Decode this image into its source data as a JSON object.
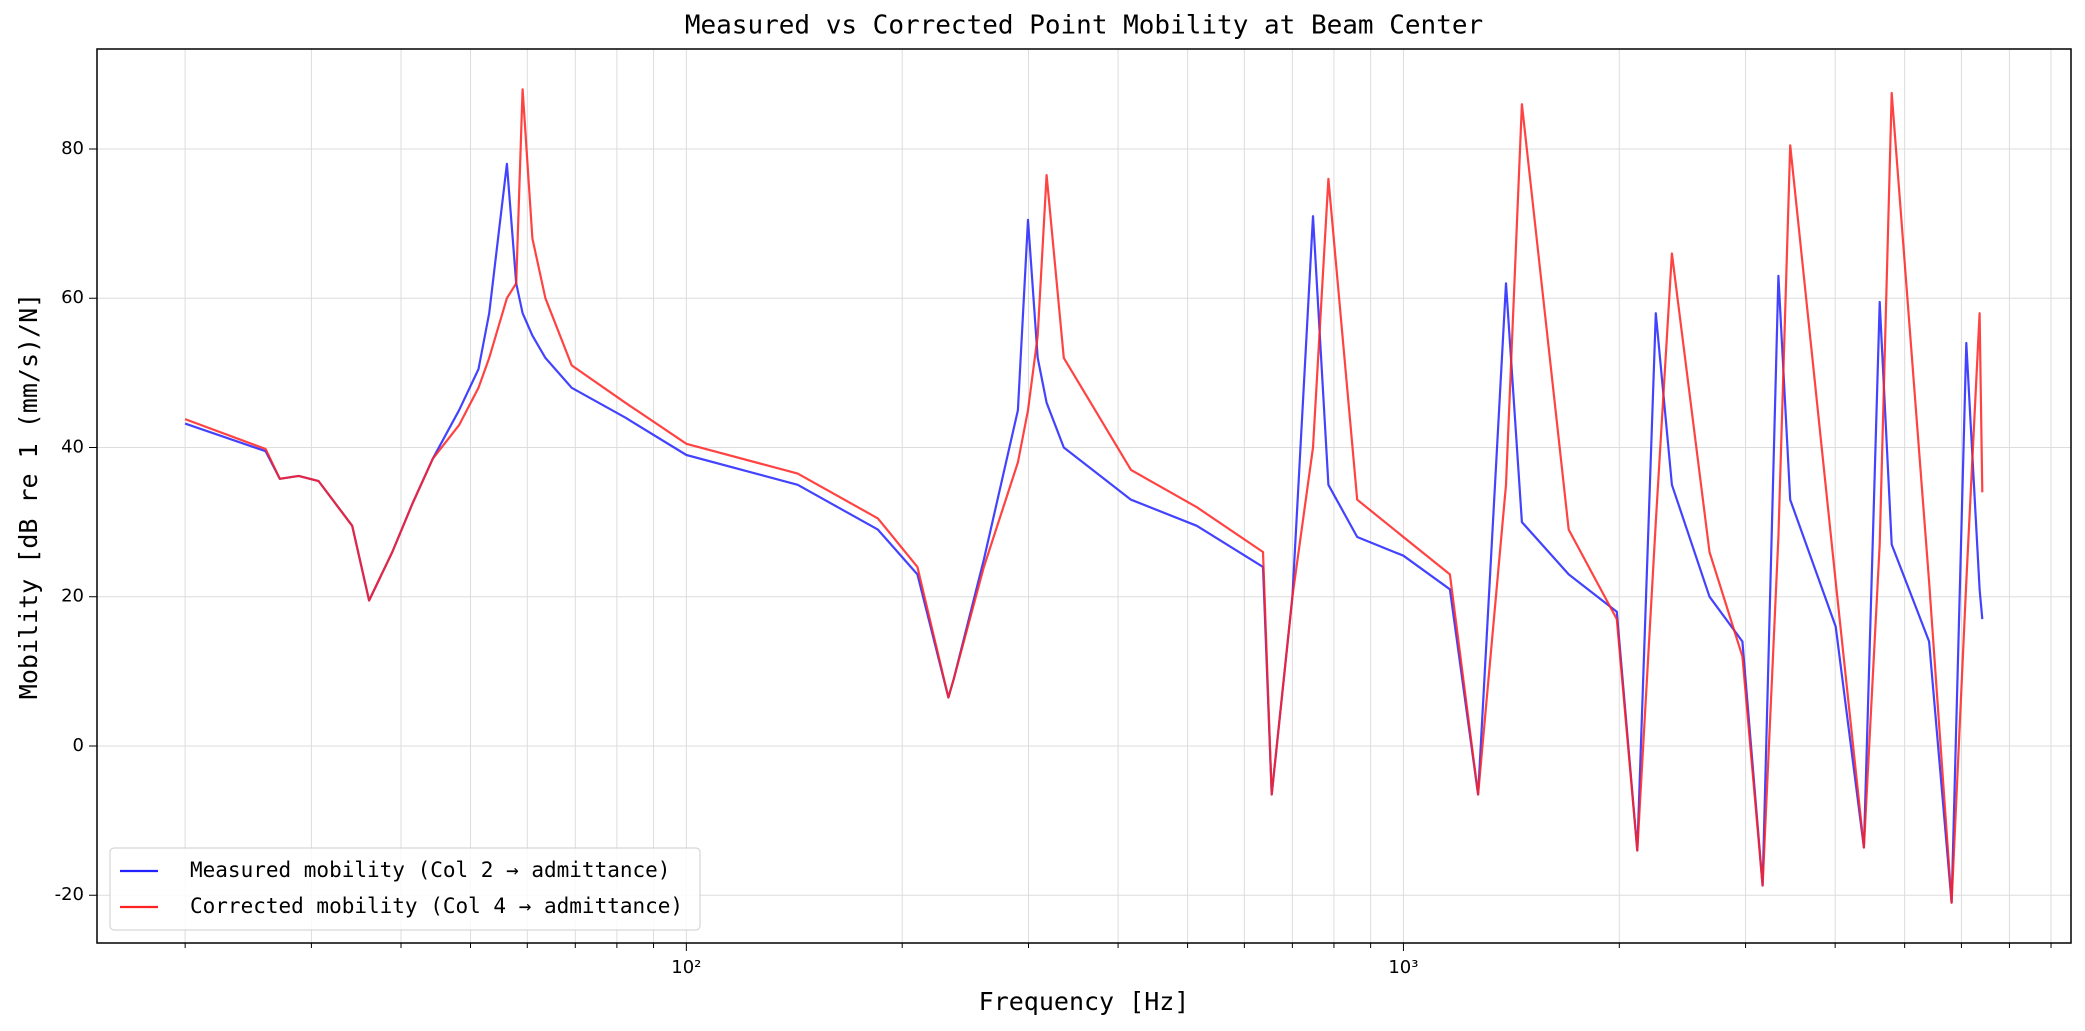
{
  "chart_data": {
    "type": "line",
    "title": "Measured vs Corrected Point Mobility at Beam Center",
    "xlabel": "Frequency [Hz]",
    "ylabel": "Mobility [dB re 1 (mm/s)/N]",
    "xscale": "log",
    "x": [
      20,
      25.9,
      27.1,
      28.8,
      30.7,
      34.2,
      36.1,
      38.9,
      41.5,
      44.3,
      48.2,
      51.3,
      53.1,
      56.2,
      57.9,
      59.1,
      61,
      63.6,
      69.2,
      82.2,
      100,
      143,
      185,
      210,
      232,
      236,
      260,
      290,
      299.5,
      309,
      318,
      336,
      417,
      515,
      637,
      655,
      700,
      748,
      786,
      862,
      1000,
      1161,
      1271,
      1390,
      1463,
      1700,
      1984,
      2119,
      2249,
      2368,
      2672,
      2970,
      3169,
      3334,
      3462,
      4007,
      4387,
      4615,
      4797,
      5408,
      5813,
      6095,
      6360,
      6416
    ],
    "series": [
      {
        "name": "Measured mobility (Col 2 → admittance)",
        "color": "#2222ff",
        "values": [
          43.2,
          39.5,
          35.8,
          36.2,
          35.5,
          29.5,
          19.5,
          26,
          32.5,
          38.5,
          45,
          50.5,
          58,
          78,
          62,
          58,
          55,
          52,
          48,
          44,
          39,
          35,
          29,
          23,
          6.5,
          9,
          25,
          45,
          70.5,
          52,
          46,
          40,
          33,
          29.5,
          24,
          -6.5,
          20,
          71,
          35,
          28,
          25.5,
          21,
          -6.5,
          62,
          30,
          23,
          18,
          -14,
          58,
          35,
          20,
          14,
          -18.7,
          63,
          33,
          16,
          -13.6,
          59.5,
          27,
          14,
          -21,
          54,
          21,
          17
        ]
      },
      {
        "name": "Corrected mobility (Col 4 → admittance)",
        "color": "#ff2222",
        "values": [
          43.8,
          39.8,
          35.8,
          36.2,
          35.5,
          29.5,
          19.5,
          26,
          32.5,
          38.5,
          43,
          48,
          52,
          60,
          62,
          88,
          68,
          60,
          51,
          46,
          40.5,
          36.5,
          30.5,
          24,
          6.5,
          9,
          24,
          38,
          45,
          55,
          76.5,
          52,
          37,
          32,
          26,
          -6.5,
          20,
          40,
          76,
          33,
          28,
          23,
          -6.5,
          35,
          86,
          29,
          17,
          -14,
          30,
          66,
          26,
          12,
          -18.7,
          28,
          80.5,
          22,
          -13.6,
          27,
          87.5,
          22,
          -21,
          22,
          58,
          34
        ]
      }
    ],
    "xlim": [
      15.07,
      8530
    ],
    "xticks": [
      {
        "value": 100,
        "label": "10²"
      },
      {
        "value": 1000,
        "label": "10³"
      }
    ],
    "xminor_ticks": [
      20,
      30,
      40,
      50,
      60,
      70,
      80,
      90,
      200,
      300,
      400,
      500,
      600,
      700,
      800,
      900,
      2000,
      3000,
      4000,
      5000,
      6000,
      7000,
      8000
    ],
    "ylim": [
      -26.4,
      93.4
    ],
    "yticks": [
      -20,
      0,
      20,
      40,
      60,
      80
    ],
    "grid": true,
    "legend": "lower left"
  }
}
